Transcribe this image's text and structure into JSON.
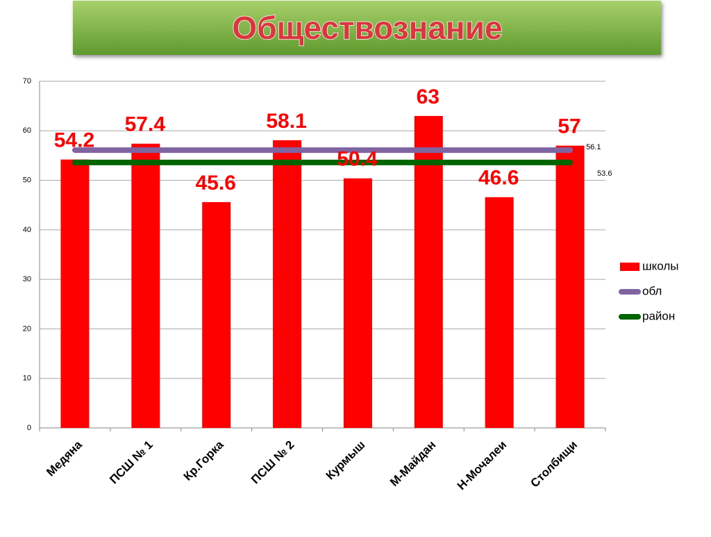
{
  "chart_data": {
    "type": "bar",
    "title": "Обществознание",
    "categories": [
      "Медяна",
      "ПСШ № 1",
      "Кр.Горка",
      "ПСШ № 2",
      "Курмыш",
      "М-Майдан",
      "Н-Мочалеи",
      "Столбищи"
    ],
    "series": [
      {
        "name": "школы",
        "type": "bar",
        "color": "#ff0000",
        "values": [
          54.2,
          57.4,
          45.6,
          58.1,
          50.4,
          63,
          46.6,
          57
        ]
      },
      {
        "name": "обл",
        "type": "line",
        "color": "#8064a2",
        "values": [
          56.1,
          56.1,
          56.1,
          56.1,
          56.1,
          56.1,
          56.1,
          56.1
        ]
      },
      {
        "name": "район",
        "type": "line",
        "color": "#006400",
        "values": [
          53.6,
          53.6,
          53.6,
          53.6,
          53.6,
          53.6,
          53.6,
          53.6
        ]
      }
    ],
    "ylim": [
      0,
      70
    ],
    "yticks": [
      0,
      10,
      20,
      30,
      40,
      50,
      60,
      70
    ],
    "grid": true,
    "legend": "right"
  }
}
